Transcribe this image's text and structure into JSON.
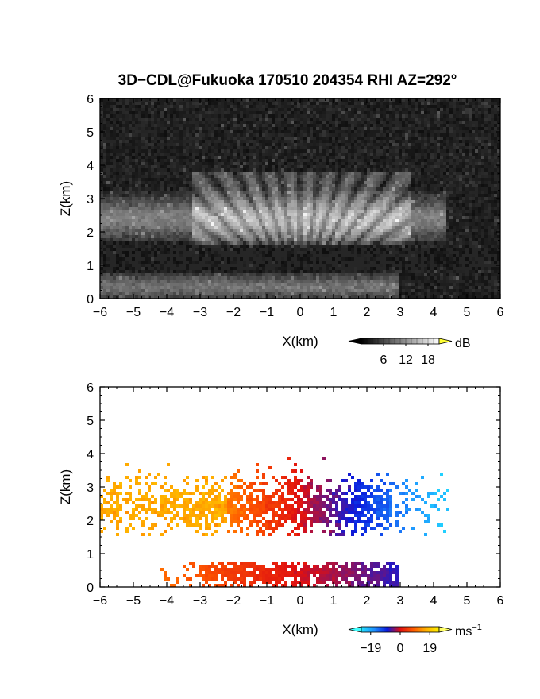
{
  "title": "3D−CDL@Fukuoka 170510 204354 RHI AZ=292°",
  "chart_data": [
    {
      "type": "heatmap",
      "field": "backscatter intensity",
      "xlabel": "X(km)",
      "ylabel": "Z(km)",
      "xlim": [
        -6,
        6
      ],
      "ylim": [
        0,
        6
      ],
      "xticks": [
        "−6",
        "−5",
        "−4",
        "−3",
        "−2",
        "−1",
        "0",
        "1",
        "2",
        "3",
        "4",
        "5",
        "6"
      ],
      "yticks": [
        "0",
        "1",
        "2",
        "3",
        "4",
        "5",
        "6"
      ],
      "colorbar": {
        "unit": "dB",
        "ticks": [
          6,
          12,
          18
        ],
        "tick_labels": [
          "6",
          "12",
          "18"
        ],
        "range": [
          0,
          21
        ],
        "colormap": [
          "#000000",
          "#ffffff"
        ],
        "over_color": "#ffff33"
      },
      "features": [
        {
          "name": "upper aerosol/cloud layer",
          "x_range": [
            -6,
            4.5
          ],
          "z_range": [
            1.6,
            3.8
          ]
        },
        {
          "name": "lower layer",
          "x_range": [
            -6,
            3
          ],
          "z_range": [
            0.0,
            0.8
          ]
        }
      ],
      "background": "#262626"
    },
    {
      "type": "heatmap",
      "field": "radial (Doppler) velocity",
      "xlabel": "X(km)",
      "ylabel": "Z(km)",
      "xlim": [
        -6,
        6
      ],
      "ylim": [
        0,
        6
      ],
      "xticks": [
        "−6",
        "−5",
        "−4",
        "−3",
        "−2",
        "−1",
        "0",
        "1",
        "2",
        "3",
        "4",
        "5",
        "6"
      ],
      "yticks": [
        "0",
        "1",
        "2",
        "3",
        "4",
        "5",
        "6"
      ],
      "colorbar": {
        "unit": "ms⁻¹",
        "unit_base": "ms",
        "unit_exp": "−1",
        "ticks": [
          -19,
          0,
          19
        ],
        "tick_labels": [
          "−19",
          "0",
          "19"
        ],
        "range": [
          -25,
          25
        ],
        "colormap": [
          "#22e0ff",
          "#1e90ff",
          "#0a1adc",
          "#e01010",
          "#ff5a00",
          "#ffb000",
          "#fff200"
        ],
        "under_color": "#40ffff",
        "over_color": "#ffff66"
      },
      "features": [
        {
          "name": "upper layer approaching",
          "x_range": [
            -6,
            0
          ],
          "z_range": [
            1.5,
            3.9
          ],
          "velocity_range": [
            0,
            20
          ]
        },
        {
          "name": "upper layer receding",
          "x_range": [
            0,
            4.5
          ],
          "z_range": [
            1.6,
            3.8
          ],
          "velocity_range": [
            -20,
            0
          ]
        },
        {
          "name": "lower layer approaching",
          "x_range": [
            -4,
            0
          ],
          "z_range": [
            0.0,
            0.8
          ],
          "velocity_range": [
            0,
            8
          ]
        },
        {
          "name": "lower layer receding",
          "x_range": [
            0,
            3
          ],
          "z_range": [
            0.0,
            0.8
          ],
          "velocity_range": [
            -8,
            0
          ]
        }
      ],
      "background": "#ffffff"
    }
  ]
}
